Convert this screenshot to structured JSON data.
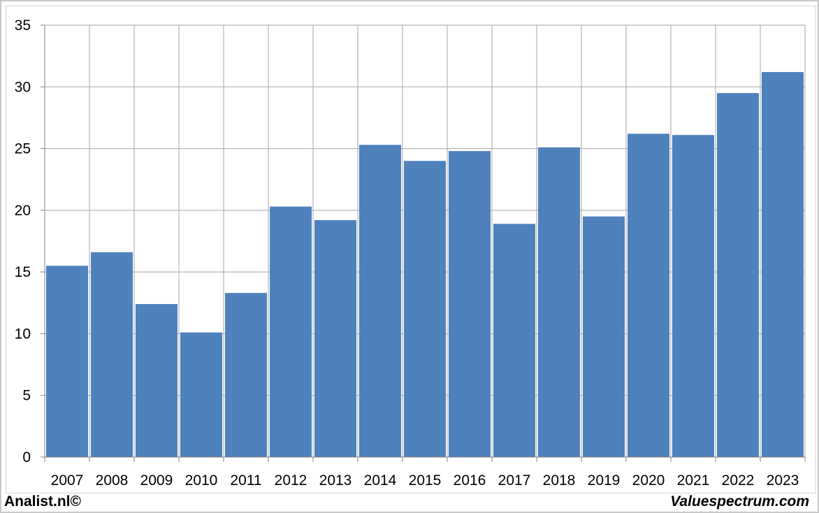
{
  "footer": {
    "left_text": "Analist.nl©",
    "right_text": "Valuespectrum.com"
  },
  "colors": {
    "bar": "#4f81bd",
    "grid": "#a6a6a6",
    "axis": "#808080"
  },
  "chart_data": {
    "type": "bar",
    "title": "",
    "xlabel": "",
    "ylabel": "",
    "categories": [
      "2007",
      "2008",
      "2009",
      "2010",
      "2011",
      "2012",
      "2013",
      "2014",
      "2015",
      "2016",
      "2017",
      "2018",
      "2019",
      "2020",
      "2021",
      "2022",
      "2023"
    ],
    "values": [
      15.5,
      16.6,
      12.4,
      10.1,
      13.3,
      20.3,
      19.2,
      25.3,
      24.0,
      24.8,
      18.9,
      25.1,
      19.5,
      26.2,
      26.1,
      29.5,
      31.2
    ],
    "ylim": [
      0,
      35
    ],
    "yticks": [
      "0",
      "5",
      "10",
      "15",
      "20",
      "25",
      "30",
      "35"
    ],
    "grid": true,
    "legend": "none"
  }
}
